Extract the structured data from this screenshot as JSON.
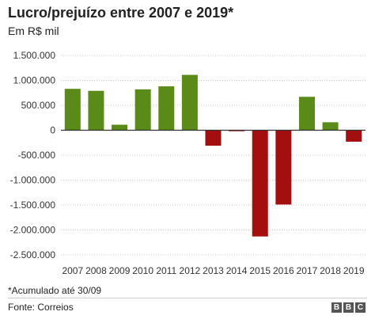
{
  "chart_data": {
    "type": "bar",
    "title": "Lucro/prejuízo entre 2007 e 2019*",
    "subtitle": "Em R$ mil",
    "xlabel": "",
    "ylabel": "",
    "categories": [
      "2007",
      "2008",
      "2009",
      "2010",
      "2011",
      "2012",
      "2013",
      "2014",
      "2015",
      "2016",
      "2017",
      "2018",
      "2019"
    ],
    "values": [
      830000,
      790000,
      110000,
      820000,
      880000,
      1110000,
      -310000,
      -20000,
      -2130000,
      -1490000,
      670000,
      160000,
      -230000
    ],
    "ylim": [
      -2500000,
      1500000
    ],
    "yticks": [
      1500000,
      1000000,
      500000,
      0,
      -500000,
      -1000000,
      -1500000,
      -2000000,
      -2500000
    ],
    "ytick_labels": [
      "1.500.000",
      "1.000.000",
      "500.000",
      "0",
      "-500.000",
      "-1.000.000",
      "-1.500.000",
      "-2.000.000",
      "-2.500.000"
    ],
    "colors": {
      "positive": "#5a8a18",
      "negative": "#a30e0e"
    },
    "grid": "horizontal dotted",
    "footnote": "*Acumulado até 30/09",
    "source": "Fonte: Correios",
    "logo": [
      "B",
      "B",
      "C"
    ]
  }
}
